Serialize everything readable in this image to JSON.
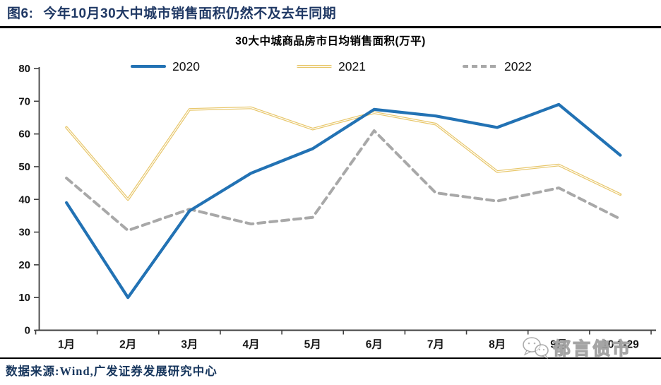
{
  "figure": {
    "label": "图6:",
    "title": "今年10月30大中城市销售面积仍然不及去年同期"
  },
  "chart_data": {
    "type": "line",
    "title": "30大中城商品房市日均销售面积(万平)",
    "categories": [
      "1月",
      "2月",
      "3月",
      "4月",
      "5月",
      "6月",
      "7月",
      "8月",
      "9月",
      "10.1-29"
    ],
    "series": [
      {
        "name": "2020",
        "style": "solid",
        "color": "#2272B4",
        "values": [
          39,
          10,
          36.5,
          48,
          55.5,
          67.5,
          65.5,
          62,
          69,
          53.5
        ]
      },
      {
        "name": "2021",
        "style": "double",
        "color": "#E8C76B",
        "values": [
          62,
          40,
          67.5,
          68,
          61.5,
          66.5,
          63,
          48.5,
          50.5,
          41.5
        ]
      },
      {
        "name": "2022",
        "style": "dashed",
        "color": "#A8A8A8",
        "values": [
          46.5,
          30.5,
          37,
          32.5,
          34.5,
          61,
          42,
          39.5,
          43.5,
          34
        ]
      }
    ],
    "ylim": [
      0,
      80
    ],
    "ytick_step": 10,
    "legend_position": "top",
    "grid": false,
    "axis_color": "#404040",
    "tick_label_color": "#141414"
  },
  "source": {
    "text": "数据来源:Wind,广发证券发展研究中心"
  },
  "watermark": {
    "text": "郁言债市",
    "icon": "wechat-bubbles-icon"
  }
}
